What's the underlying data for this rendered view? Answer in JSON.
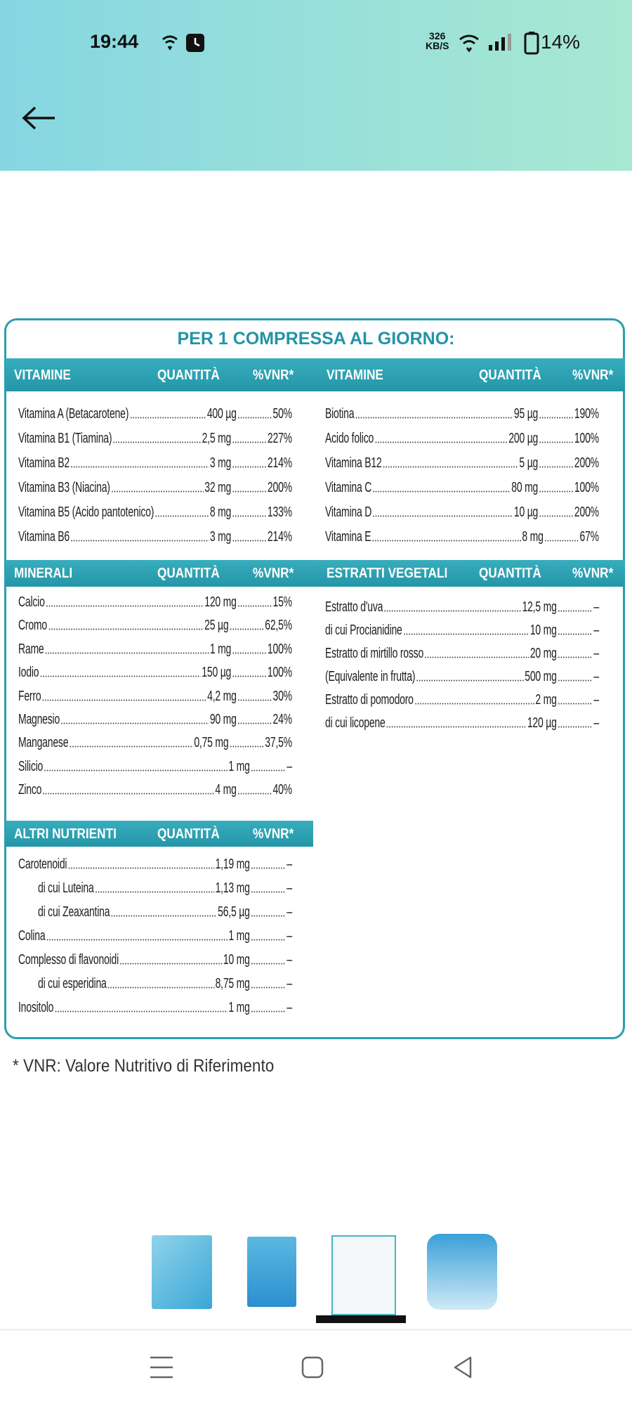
{
  "status_bar": {
    "time": "19:44",
    "speed": "326",
    "speed_unit": "KB/S",
    "battery": "14%"
  },
  "table": {
    "title": "PER 1 COMPRESSA AL GIORNO:",
    "sections": [
      {
        "column": "left",
        "headers": [
          "VITAMINE",
          "QUANTITÀ",
          "%VNR*"
        ],
        "rows": [
          {
            "name": "Vitamina A (Betacarotene)",
            "qty": "400 µg",
            "vnr": "50%"
          },
          {
            "name": "Vitamina B1 (Tiamina)",
            "qty": "2,5 mg",
            "vnr": "227%"
          },
          {
            "name": "Vitamina B2",
            "qty": "3 mg",
            "vnr": "214%"
          },
          {
            "name": "Vitamina B3 (Niacina)",
            "qty": "32 mg",
            "vnr": "200%"
          },
          {
            "name": "Vitamina B5 (Acido pantotenico)",
            "qty": "8 mg",
            "vnr": "133%"
          },
          {
            "name": "Vitamina B6",
            "qty": "3 mg",
            "vnr": "214%"
          }
        ]
      },
      {
        "column": "right",
        "headers": [
          "VITAMINE",
          "QUANTITÀ",
          "%VNR*"
        ],
        "rows": [
          {
            "name": "Biotina",
            "qty": "95 µg",
            "vnr": "190%"
          },
          {
            "name": "Acido folico",
            "qty": "200 µg",
            "vnr": "100%"
          },
          {
            "name": "Vitamina B12",
            "qty": "5 µg",
            "vnr": "200%"
          },
          {
            "name": "Vitamina C",
            "qty": "80 mg",
            "vnr": "100%"
          },
          {
            "name": "Vitamina D",
            "qty": "10 µg",
            "vnr": "200%"
          },
          {
            "name": "Vitamina E",
            "qty": "8 mg",
            "vnr": "67%"
          }
        ]
      },
      {
        "column": "left",
        "headers": [
          "MINERALI",
          "QUANTITÀ",
          "%VNR*"
        ],
        "rows": [
          {
            "name": "Calcio",
            "qty": "120 mg",
            "vnr": "15%"
          },
          {
            "name": "Cromo",
            "qty": "25 µg",
            "vnr": "62,5%"
          },
          {
            "name": "Rame",
            "qty": "1 mg",
            "vnr": "100%"
          },
          {
            "name": "Iodio",
            "qty": "150 µg",
            "vnr": "100%"
          },
          {
            "name": "Ferro",
            "qty": "4,2 mg",
            "vnr": "30%"
          },
          {
            "name": "Magnesio",
            "qty": "90 mg",
            "vnr": "24%"
          },
          {
            "name": "Manganese",
            "qty": "0,75 mg",
            "vnr": "37,5%"
          },
          {
            "name": "Silicio",
            "qty": "1 mg",
            "vnr": "–"
          },
          {
            "name": "Zinco",
            "qty": "4 mg",
            "vnr": "40%"
          }
        ]
      },
      {
        "column": "right",
        "headers": [
          "ESTRATTI VEGETALI",
          "QUANTITÀ",
          "%VNR*"
        ],
        "rows": [
          {
            "name": "Estratto d'uva",
            "qty": "12,5 mg",
            "vnr": "–"
          },
          {
            "name": "di cui Procianidine",
            "qty": "10 mg",
            "vnr": "–"
          },
          {
            "name": "Estratto di mirtillo rosso",
            "qty": "20 mg",
            "vnr": "–"
          },
          {
            "name": "(Equivalente in frutta)",
            "qty": "500 mg",
            "vnr": "–"
          },
          {
            "name": "Estratto di pomodoro",
            "qty": "2 mg",
            "vnr": "–"
          },
          {
            "name": "di cui licopene",
            "qty": "120 µg",
            "vnr": "–"
          }
        ]
      },
      {
        "column": "left",
        "headers": [
          "ALTRI NUTRIENTI",
          "QUANTITÀ",
          "%VNR*"
        ],
        "rows": [
          {
            "name": "Carotenoidi",
            "qty": "1,19 mg",
            "vnr": "–"
          },
          {
            "name": "di cui Luteina",
            "qty": "1,13 mg",
            "vnr": "–",
            "indent": true
          },
          {
            "name": "di cui Zeaxantina",
            "qty": "56,5 µg",
            "vnr": "–",
            "indent": true
          },
          {
            "name": "Colina",
            "qty": "1 mg",
            "vnr": "–"
          },
          {
            "name": "Complesso di flavonoidi",
            "qty": "10 mg",
            "vnr": "–"
          },
          {
            "name": "di cui esperidina",
            "qty": "8,75 mg",
            "vnr": "–",
            "indent": true
          },
          {
            "name": "Inositolo",
            "qty": "1 mg",
            "vnr": "–"
          }
        ]
      }
    ],
    "footnote": "* VNR: Valore Nutritivo di Riferimento"
  }
}
